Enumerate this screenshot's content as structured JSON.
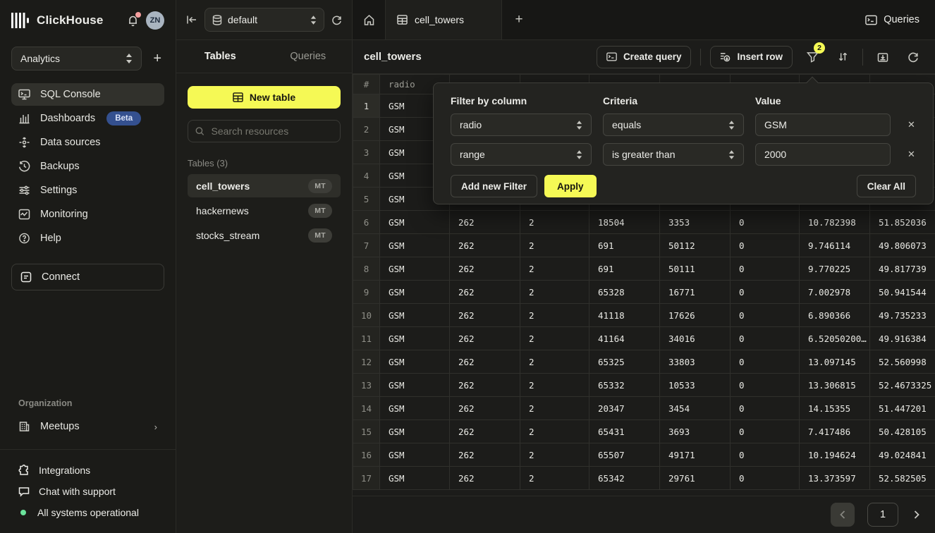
{
  "colors": {
    "accent": "#F5F955",
    "beta_badge_bg": "#34508F",
    "beta_badge_text": "#D9E2F8",
    "status_green": "#6BE39B",
    "notification_dot": "#F49E9E"
  },
  "brand": {
    "name": "ClickHouse",
    "avatar_initials": "ZN"
  },
  "sidebar": {
    "workspace": "Analytics",
    "items": [
      {
        "label": "SQL Console"
      },
      {
        "label": "Dashboards",
        "badge": "Beta"
      },
      {
        "label": "Data sources"
      },
      {
        "label": "Backups"
      },
      {
        "label": "Settings"
      },
      {
        "label": "Monitoring"
      },
      {
        "label": "Help"
      }
    ],
    "connect_label": "Connect",
    "organization_label": "Organization",
    "org_items": [
      {
        "label": "Meetups"
      }
    ],
    "footer_items": [
      {
        "label": "Integrations"
      },
      {
        "label": "Chat with support"
      },
      {
        "label": "All systems operational"
      }
    ]
  },
  "explorer": {
    "database": "default",
    "tabs": [
      {
        "label": "Tables"
      },
      {
        "label": "Queries"
      }
    ],
    "new_table_label": "New table",
    "search_placeholder": "Search resources",
    "section_label": "Tables (3)",
    "tables": [
      {
        "name": "cell_towers",
        "badge": "MT"
      },
      {
        "name": "hackernews",
        "badge": "MT"
      },
      {
        "name": "stocks_stream",
        "badge": "MT"
      }
    ]
  },
  "main": {
    "open_tab": "cell_towers",
    "queries_label": "Queries",
    "title": "cell_towers",
    "create_query_label": "Create query",
    "insert_row_label": "Insert row",
    "filter_count": "2"
  },
  "filter_panel": {
    "column_header": "Filter by column",
    "criteria_header": "Criteria",
    "value_header": "Value",
    "filters": [
      {
        "column": "radio",
        "criteria": "equals",
        "value": "GSM"
      },
      {
        "column": "range",
        "criteria": "is greater than",
        "value": "2000"
      }
    ],
    "add_label": "Add new Filter",
    "apply_label": "Apply",
    "clear_label": "Clear All"
  },
  "table": {
    "headers": [
      "#",
      "radio",
      "",
      "",
      "",
      "",
      "",
      "",
      ""
    ],
    "selected_cell": {
      "row": 0,
      "col": 1
    },
    "rows": [
      [
        "1",
        "GSM",
        "",
        "",
        "",
        "",
        "",
        "",
        ""
      ],
      [
        "2",
        "GSM",
        "",
        "",
        "",
        "",
        "",
        "",
        ""
      ],
      [
        "3",
        "GSM",
        "",
        "",
        "",
        "",
        "",
        "",
        ""
      ],
      [
        "4",
        "GSM",
        "",
        "",
        "",
        "",
        "",
        "",
        ""
      ],
      [
        "5",
        "GSM",
        "",
        "",
        "",
        "",
        "",
        "",
        ""
      ],
      [
        "6",
        "GSM",
        "262",
        "2",
        "18504",
        "3353",
        "0",
        "10.782398",
        "51.852036"
      ],
      [
        "7",
        "GSM",
        "262",
        "2",
        "691",
        "50112",
        "0",
        "9.746114",
        "49.806073"
      ],
      [
        "8",
        "GSM",
        "262",
        "2",
        "691",
        "50111",
        "0",
        "9.770225",
        "49.817739"
      ],
      [
        "9",
        "GSM",
        "262",
        "2",
        "65328",
        "16771",
        "0",
        "7.002978",
        "50.941544"
      ],
      [
        "10",
        "GSM",
        "262",
        "2",
        "41118",
        "17626",
        "0",
        "6.890366",
        "49.735233"
      ],
      [
        "11",
        "GSM",
        "262",
        "2",
        "41164",
        "34016",
        "0",
        "6.52050200…",
        "49.916384"
      ],
      [
        "12",
        "GSM",
        "262",
        "2",
        "65325",
        "33803",
        "0",
        "13.097145",
        "52.560998"
      ],
      [
        "13",
        "GSM",
        "262",
        "2",
        "65332",
        "10533",
        "0",
        "13.306815",
        "52.4673325"
      ],
      [
        "14",
        "GSM",
        "262",
        "2",
        "20347",
        "3454",
        "0",
        "14.15355",
        "51.447201"
      ],
      [
        "15",
        "GSM",
        "262",
        "2",
        "65431",
        "3693",
        "0",
        "7.417486",
        "50.428105"
      ],
      [
        "16",
        "GSM",
        "262",
        "2",
        "65507",
        "49171",
        "0",
        "10.194624",
        "49.024841"
      ],
      [
        "17",
        "GSM",
        "262",
        "2",
        "65342",
        "29761",
        "0",
        "13.373597",
        "52.582505"
      ]
    ]
  },
  "pagination": {
    "page": "1"
  }
}
